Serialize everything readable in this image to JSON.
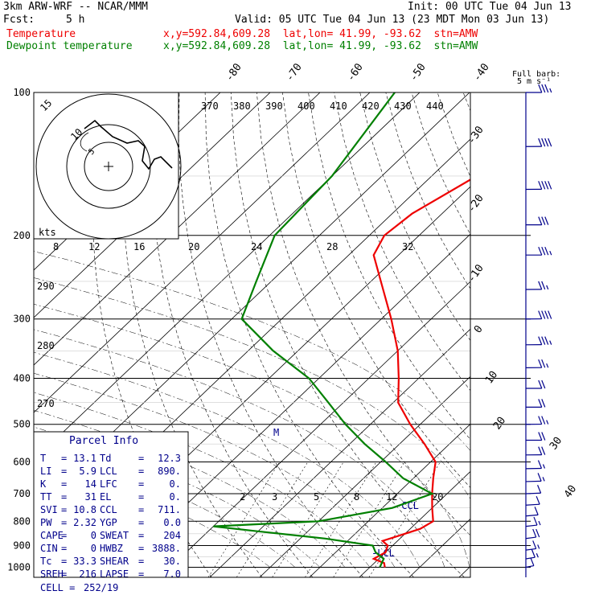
{
  "header": {
    "model": "3km ARW-WRF -- NCAR/MMM",
    "init": "Init: 00 UTC Tue 04 Jun 13",
    "fcst_label": "Fcst:",
    "fcst_value": "5 h",
    "valid": "Valid: 05 UTC Tue 04 Jun 13 (23 MDT Mon 03 Jun 13)",
    "series": [
      {
        "name": "Temperature",
        "coords": "x,y=592.84,609.28  lat,lon= 41.99, -93.62  stn=AMW",
        "color": "#ee0000"
      },
      {
        "name": "Dewpoint temperature",
        "coords": "x,y=592.84,609.28  lat,lon= 41.99, -93.62  stn=AMW",
        "color": "#008000"
      }
    ]
  },
  "chart_data": {
    "type": "line",
    "subtype": "skew-T log-P sounding",
    "pressure_ticks": [
      "100",
      "200",
      "300",
      "400",
      "500",
      "600",
      "700",
      "800",
      "900",
      "1000"
    ],
    "skew_temp_ticks_upper": [
      "-80",
      "-70",
      "-60",
      "-50",
      "-40"
    ],
    "skew_temp_ticks_right": [
      "-30",
      "-20",
      "-10",
      "0",
      "10",
      "20",
      "30",
      "40"
    ],
    "theta_e_ticks": [
      "370",
      "380",
      "390",
      "400",
      "410",
      "420",
      "430",
      "440"
    ],
    "mixing_ratio_ticks": [
      "2",
      "3",
      "5",
      "8",
      "12",
      "20"
    ],
    "wind_speed_ticks": [
      "8",
      "12",
      "16",
      "20",
      "24",
      "28",
      "32"
    ],
    "wind_speed_unit": "kts",
    "hodograph_ring_labels": [
      "5",
      "10",
      "15"
    ],
    "theta_left_ticks": [
      "290",
      "280",
      "270"
    ],
    "levels_label_lcl": "LCL",
    "levels_label_ccl": "CCL",
    "marker_label": "M",
    "series": [
      {
        "name": "Temperature",
        "color": "#ee0000",
        "points": [
          [
            100,
            -44
          ],
          [
            120,
            -46
          ],
          [
            150,
            -51
          ],
          [
            180,
            -56
          ],
          [
            200,
            -57
          ],
          [
            220,
            -55
          ],
          [
            250,
            -48
          ],
          [
            300,
            -38
          ],
          [
            350,
            -30
          ],
          [
            400,
            -24
          ],
          [
            450,
            -19
          ],
          [
            500,
            -12
          ],
          [
            550,
            -5
          ],
          [
            600,
            1
          ],
          [
            650,
            4
          ],
          [
            700,
            7
          ],
          [
            750,
            10
          ],
          [
            800,
            13
          ],
          [
            830,
            12
          ],
          [
            860,
            9
          ],
          [
            880,
            7
          ],
          [
            900,
            9
          ],
          [
            930,
            10
          ],
          [
            960,
            9
          ],
          [
            980,
            12
          ],
          [
            1000,
            13
          ]
        ]
      },
      {
        "name": "Dewpoint temperature",
        "color": "#008000",
        "points": [
          [
            100,
            -85
          ],
          [
            150,
            -80
          ],
          [
            200,
            -79
          ],
          [
            250,
            -73
          ],
          [
            300,
            -68
          ],
          [
            350,
            -55
          ],
          [
            400,
            -42
          ],
          [
            450,
            -33
          ],
          [
            500,
            -25
          ],
          [
            550,
            -17
          ],
          [
            600,
            -9
          ],
          [
            650,
            -2
          ],
          [
            700,
            7
          ],
          [
            750,
            2
          ],
          [
            800,
            -10
          ],
          [
            820,
            -30
          ],
          [
            840,
            -20
          ],
          [
            870,
            -5
          ],
          [
            900,
            6
          ],
          [
            930,
            8
          ],
          [
            960,
            11
          ],
          [
            1000,
            12
          ]
        ]
      }
    ],
    "wind_barbs": [
      {
        "p": 100,
        "spd": 35,
        "dir": 270
      },
      {
        "p": 130,
        "spd": 40,
        "dir": 275
      },
      {
        "p": 160,
        "spd": 40,
        "dir": 275
      },
      {
        "p": 190,
        "spd": 30,
        "dir": 270
      },
      {
        "p": 220,
        "spd": 35,
        "dir": 270
      },
      {
        "p": 260,
        "spd": 25,
        "dir": 275
      },
      {
        "p": 300,
        "spd": 40,
        "dir": 275
      },
      {
        "p": 340,
        "spd": 35,
        "dir": 275
      },
      {
        "p": 380,
        "spd": 25,
        "dir": 275
      },
      {
        "p": 420,
        "spd": 20,
        "dir": 270
      },
      {
        "p": 460,
        "spd": 20,
        "dir": 270
      },
      {
        "p": 500,
        "spd": 25,
        "dir": 275
      },
      {
        "p": 540,
        "spd": 20,
        "dir": 270
      },
      {
        "p": 580,
        "spd": 20,
        "dir": 275
      },
      {
        "p": 620,
        "spd": 15,
        "dir": 280
      },
      {
        "p": 660,
        "spd": 15,
        "dir": 285
      },
      {
        "p": 700,
        "spd": 10,
        "dir": 290
      },
      {
        "p": 740,
        "spd": 10,
        "dir": 300
      },
      {
        "p": 780,
        "spd": 10,
        "dir": 310
      },
      {
        "p": 820,
        "spd": 15,
        "dir": 315
      },
      {
        "p": 870,
        "spd": 20,
        "dir": 320
      },
      {
        "p": 920,
        "spd": 15,
        "dir": 320
      },
      {
        "p": 960,
        "spd": 15,
        "dir": 325
      },
      {
        "p": 1000,
        "spd": 10,
        "dir": 330
      }
    ]
  },
  "barb_legend": {
    "line1": "Full barb:",
    "line2": "5 m s⁻¹"
  },
  "parcel_info": {
    "title": "Parcel Info",
    "rows": [
      {
        "k1": "T",
        "v1": "13.1",
        "k2": "Td",
        "v2": "12.3"
      },
      {
        "k1": "LI",
        "v1": "5.9",
        "k2": "LCL",
        "v2": "890."
      },
      {
        "k1": "K",
        "v1": "14",
        "k2": "LFC",
        "v2": "0."
      },
      {
        "k1": "TT",
        "v1": "31",
        "k2": "EL",
        "v2": "0."
      },
      {
        "k1": "SVI",
        "v1": "10.8",
        "k2": "CCL",
        "v2": "711."
      },
      {
        "k1": "PW",
        "v1": "2.32",
        "k2": "YGP",
        "v2": "0.0"
      },
      {
        "k1": "CAPE",
        "v1": "0",
        "k2": "SWEAT",
        "v2": "204"
      },
      {
        "k1": "CIN",
        "v1": "0",
        "k2": "HWBZ",
        "v2": "3888."
      },
      {
        "k1": "Tc",
        "v1": "33.3",
        "k2": "SHEAR",
        "v2": "30."
      },
      {
        "k1": "SREH",
        "v1": "216",
        "k2": "LAPSE",
        "v2": "7.0"
      }
    ],
    "cell_label": "CELL =",
    "cell_value": "252/19"
  }
}
